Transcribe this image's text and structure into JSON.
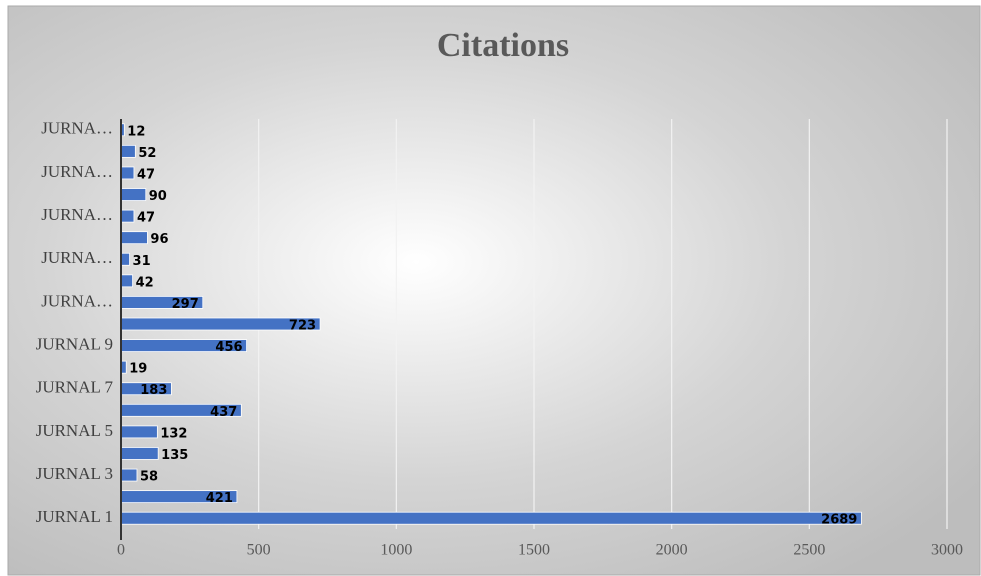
{
  "chart_data": {
    "type": "bar",
    "orientation": "horizontal",
    "title": "Citations",
    "categories": [
      "JURNAL 1",
      null,
      "JURNAL 3",
      null,
      "JURNAL 5",
      null,
      "JURNAL 7",
      null,
      "JURNAL 9",
      null,
      "JURNA…",
      null,
      "JURNA…",
      null,
      "JURNA…",
      null,
      "JURNA…",
      null,
      "JURNA…"
    ],
    "values": [
      2689,
      421,
      58,
      135,
      132,
      437,
      183,
      19,
      456,
      723,
      297,
      42,
      31,
      96,
      47,
      90,
      47,
      52,
      12
    ],
    "color": "#4472c4",
    "xlim": [
      0,
      3000
    ],
    "xticks": [
      0,
      500,
      1000,
      1500,
      2000,
      2500,
      3000
    ],
    "grid": true
  }
}
